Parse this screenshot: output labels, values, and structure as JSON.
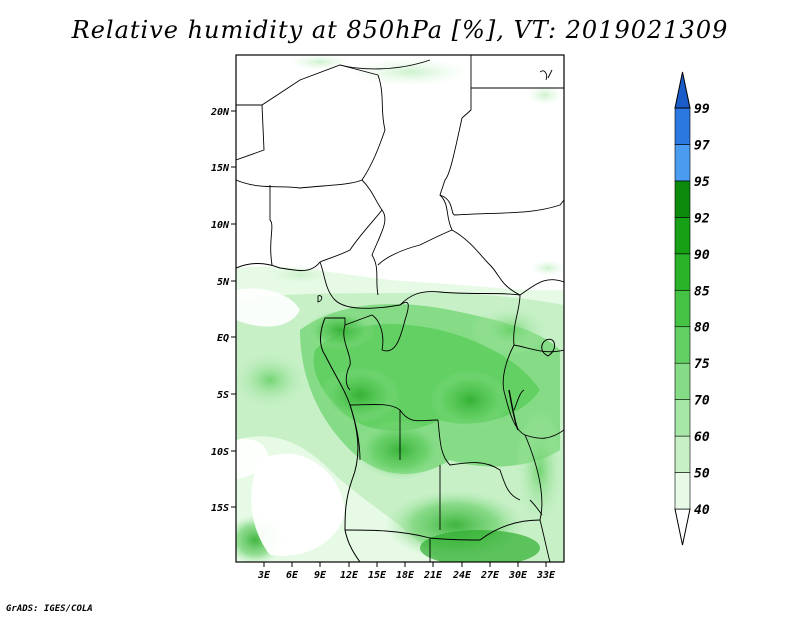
{
  "title": "Relative humidity at 850hPa [%], VT: 2019021309",
  "credit": "GrADS: IGES/COLA",
  "map": {
    "lon_ticks": [
      "3E",
      "6E",
      "9E",
      "12E",
      "15E",
      "18E",
      "21E",
      "24E",
      "27E",
      "30E",
      "33E"
    ],
    "lat_ticks": [
      "20N",
      "15N",
      "10N",
      "5N",
      "EQ",
      "5S",
      "10S",
      "15S"
    ]
  },
  "colorbar": {
    "levels": [
      "40",
      "50",
      "60",
      "70",
      "75",
      "80",
      "85",
      "90",
      "92",
      "95",
      "97",
      "99"
    ],
    "colors": [
      "#ffffff",
      "#e6fae6",
      "#c7f0c7",
      "#a6e6a6",
      "#86dc86",
      "#63d063",
      "#44c344",
      "#29b329",
      "#16a016",
      "#0b8a0b",
      "#4a9cf0",
      "#2a78e0",
      "#1a5cc8"
    ]
  }
}
